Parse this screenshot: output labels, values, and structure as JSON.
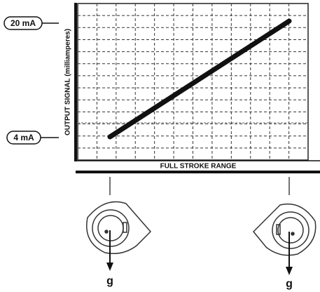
{
  "diagram": {
    "y_axis_label": "OUTPUT SIGNAL (milliamperes)",
    "x_axis_label": "FULL STROKE RANGE",
    "markers": [
      {
        "label": "20 mA"
      },
      {
        "label": "4 mA"
      }
    ],
    "positions": [
      {
        "label": "g"
      },
      {
        "label": "g"
      }
    ]
  }
}
